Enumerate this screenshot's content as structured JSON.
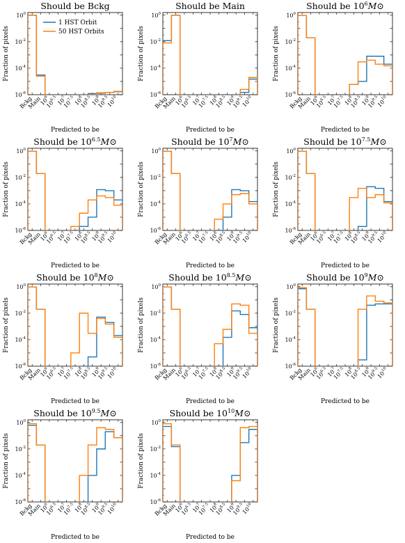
{
  "chart_data": {
    "type": "step-histogram",
    "x_categories": [
      "Bckg",
      "Main",
      "10^6",
      "10^6.5",
      "10^7",
      "10^7.5",
      "10^8",
      "10^8.5",
      "10^9",
      "10^9.5",
      "10^10"
    ],
    "xlabel": "Predicted to be",
    "ylabel": "Fraction of pixels",
    "yscale": "log",
    "ylim": [
      1e-06,
      1.6
    ],
    "yticks": [
      "10^0",
      "10^-2",
      "10^-4",
      "10^-6"
    ],
    "legend": {
      "location": "upper-center",
      "entries": [
        "1 HST Orbit",
        "50 HST Orbits"
      ]
    },
    "series_colors": {
      "1 HST Orbit": "#1f77b4",
      "50 HST Orbits": "#ff7f0e"
    },
    "panels": [
      {
        "title_base": "Should be Bckg",
        "title_sup": "",
        "title_tail": "",
        "series": [
          {
            "name": "1 HST Orbit",
            "values": [
              0.98,
              3e-05,
              0,
              0,
              0,
              0,
              8e-07,
              1.2e-06,
              1.3e-06,
              1.5e-06,
              1.7e-06
            ]
          },
          {
            "name": "50 HST Orbits",
            "values": [
              0.98,
              2.5e-05,
              0,
              0,
              0,
              0,
              7e-07,
              1e-06,
              1.4e-06,
              1.5e-06,
              1.8e-06
            ]
          }
        ]
      },
      {
        "title_base": "Should be Main",
        "title_sup": "",
        "title_tail": "",
        "series": [
          {
            "name": "1 HST Orbit",
            "values": [
              0.012,
              0.99,
              0,
              0,
              0,
              0,
              0,
              0,
              0,
              1.5e-06,
              1.5e-05
            ]
          },
          {
            "name": "50 HST Orbits",
            "values": [
              0.008,
              0.99,
              0,
              0,
              0,
              0,
              0,
              0,
              0,
              2.5e-06,
              2e-05
            ]
          }
        ]
      },
      {
        "title_base": "Should be 10",
        "title_sup": "6",
        "title_tail": "M⊙",
        "series": [
          {
            "name": "1 HST Orbit",
            "values": [
              0.95,
              0.02,
              0,
              0,
              0,
              0,
              6e-06,
              1e-05,
              0.0008,
              0.0008,
              0.0002
            ]
          },
          {
            "name": "50 HST Orbits",
            "values": [
              0.95,
              0.02,
              0,
              0,
              0,
              0,
              6e-06,
              0.0003,
              0.0004,
              0.0002,
              0.00015
            ]
          }
        ]
      },
      {
        "title_base": "Should be 10",
        "title_sup": "6.5",
        "title_tail": "M⊙",
        "series": [
          {
            "name": "1 HST Orbit",
            "values": [
              0.95,
              0.02,
              0,
              0,
              0,
              0,
              2e-06,
              1e-05,
              0.0012,
              0.001,
              0.0002
            ]
          },
          {
            "name": "50 HST Orbits",
            "values": [
              0.95,
              0.02,
              0,
              0,
              0,
              2e-06,
              2e-05,
              0.0002,
              0.0004,
              0.0003,
              8e-05
            ]
          }
        ]
      },
      {
        "title_base": "Should be 10",
        "title_sup": "7",
        "title_tail": "M⊙",
        "series": [
          {
            "name": "1 HST Orbit",
            "values": [
              0.95,
              0.02,
              0,
              0,
              0,
              0,
              1e-06,
              1e-05,
              0.0012,
              0.001,
              0.00015
            ]
          },
          {
            "name": "50 HST Orbits",
            "values": [
              0.95,
              0.02,
              0,
              0,
              0,
              0,
              7e-06,
              0.0001,
              0.0005,
              0.0006,
              0.0001
            ]
          }
        ]
      },
      {
        "title_base": "Should be 10",
        "title_sup": "7.5",
        "title_tail": "M⊙",
        "series": [
          {
            "name": "1 HST Orbit",
            "values": [
              0.95,
              0.02,
              0,
              0,
              0,
              0,
              0,
              2e-06,
              0.002,
              0.0015,
              0.00015
            ]
          },
          {
            "name": "50 HST Orbits",
            "values": [
              0.95,
              0.02,
              0,
              0,
              0,
              0,
              0.0003,
              0.0015,
              0.0003,
              0.0005,
              0.00012
            ]
          }
        ]
      },
      {
        "title_base": "Should be 10",
        "title_sup": "8",
        "title_tail": "M⊙",
        "series": [
          {
            "name": "1 HST Orbit",
            "values": [
              0.95,
              0.02,
              0,
              0,
              0,
              0,
              0,
              5e-06,
              0.005,
              0.002,
              0.0002
            ]
          },
          {
            "name": "50 HST Orbits",
            "values": [
              0.95,
              0.02,
              0,
              0,
              0,
              1e-05,
              0.01,
              0.0003,
              0.004,
              0.0015,
              0.00015
            ]
          }
        ]
      },
      {
        "title_base": "Should be 10",
        "title_sup": "8.5",
        "title_tail": "M⊙",
        "series": [
          {
            "name": "1 HST Orbit",
            "values": [
              0.95,
              0.02,
              0,
              0,
              0,
              0,
              0,
              0.00015,
              0.015,
              0.008,
              0.0008
            ]
          },
          {
            "name": "50 HST Orbits",
            "values": [
              0.95,
              0.02,
              0,
              0,
              0,
              0,
              5e-05,
              0.0006,
              0.05,
              0.04,
              0.0003
            ]
          }
        ]
      },
      {
        "title_base": "Should be 10",
        "title_sup": "9",
        "title_tail": "M⊙",
        "series": [
          {
            "name": "1 HST Orbit",
            "values": [
              0.7,
              0.02,
              0,
              0,
              0,
              0,
              0,
              3e-06,
              0.04,
              0.05,
              0.05
            ]
          },
          {
            "name": "50 HST Orbits",
            "values": [
              0.85,
              0.02,
              0,
              0,
              0,
              0,
              7e-07,
              0.02,
              0.2,
              0.08,
              0.06
            ]
          }
        ]
      },
      {
        "title_base": "Should be 10",
        "title_sup": "9.5",
        "title_tail": "M⊙",
        "series": [
          {
            "name": "1 HST Orbit",
            "values": [
              0.6,
              0.02,
              0,
              0,
              0,
              0,
              0,
              0.0001,
              0.01,
              0.2,
              0.07
            ]
          },
          {
            "name": "50 HST Orbits",
            "values": [
              0.8,
              0.02,
              0,
              0,
              0,
              0,
              0.0001,
              0.02,
              0.4,
              0.3,
              0.07
            ]
          }
        ]
      },
      {
        "title_base": "Should be 10",
        "title_sup": "10",
        "title_tail": "M⊙",
        "series": [
          {
            "name": "1 HST Orbit",
            "values": [
              0.5,
              0.015,
              0,
              0,
              0,
              0,
              0,
              0,
              0.0001,
              0.03,
              0.3
            ]
          },
          {
            "name": "50 HST Orbits",
            "values": [
              0.8,
              0.02,
              0,
              0,
              0,
              0,
              0,
              0,
              4e-05,
              0.4,
              0.5
            ]
          }
        ]
      }
    ]
  }
}
